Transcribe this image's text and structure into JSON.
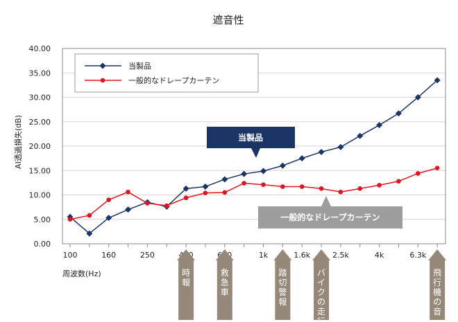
{
  "chart_data": {
    "type": "line",
    "title": "遮音性",
    "ylabel": "AI透過損失(dB)",
    "xlabel": "周波数(Hz)",
    "ylim": [
      0,
      40
    ],
    "y_ticks": [
      "0.00",
      "5.00",
      "10.00",
      "15.00",
      "20.00",
      "25.00",
      "30.00",
      "35.00",
      "40.00"
    ],
    "x_tick_labels": [
      "100",
      "160",
      "250",
      "400",
      "630",
      "1k",
      "1.6k",
      "2.5k",
      "4k",
      "6.3k"
    ],
    "grid": true,
    "legend_position": "top-left",
    "series": [
      {
        "name": "当製品",
        "color": "#1a3466",
        "marker": "diamond",
        "values": [
          5.5,
          2.1,
          5.3,
          7.0,
          8.5,
          7.6,
          11.3,
          11.7,
          13.2,
          14.3,
          14.9,
          16.0,
          17.5,
          18.8,
          19.8,
          22.1,
          24.3,
          26.7,
          30.0,
          33.5
        ]
      },
      {
        "name": "一般的なドレープカーテン",
        "color": "#e0141e",
        "marker": "circle",
        "values": [
          5.0,
          5.8,
          9.0,
          10.6,
          8.3,
          7.8,
          9.4,
          10.4,
          10.5,
          12.4,
          12.1,
          11.7,
          11.7,
          11.3,
          10.6,
          11.3,
          12.0,
          12.8,
          14.4,
          15.5
        ]
      }
    ],
    "callouts": [
      {
        "label": "当製品",
        "color": "#1a3466"
      },
      {
        "label": "一般的なドレープカーテン",
        "color": "#9d9d9d"
      }
    ],
    "events": [
      {
        "label": "時報",
        "band": 6
      },
      {
        "label": "救急車",
        "band": 8
      },
      {
        "label": "踏切警報",
        "band": 11
      },
      {
        "label": "バイクの走行",
        "band": 13
      },
      {
        "label": "飛行機の音",
        "band": 19
      }
    ],
    "event_color": "#958878"
  }
}
